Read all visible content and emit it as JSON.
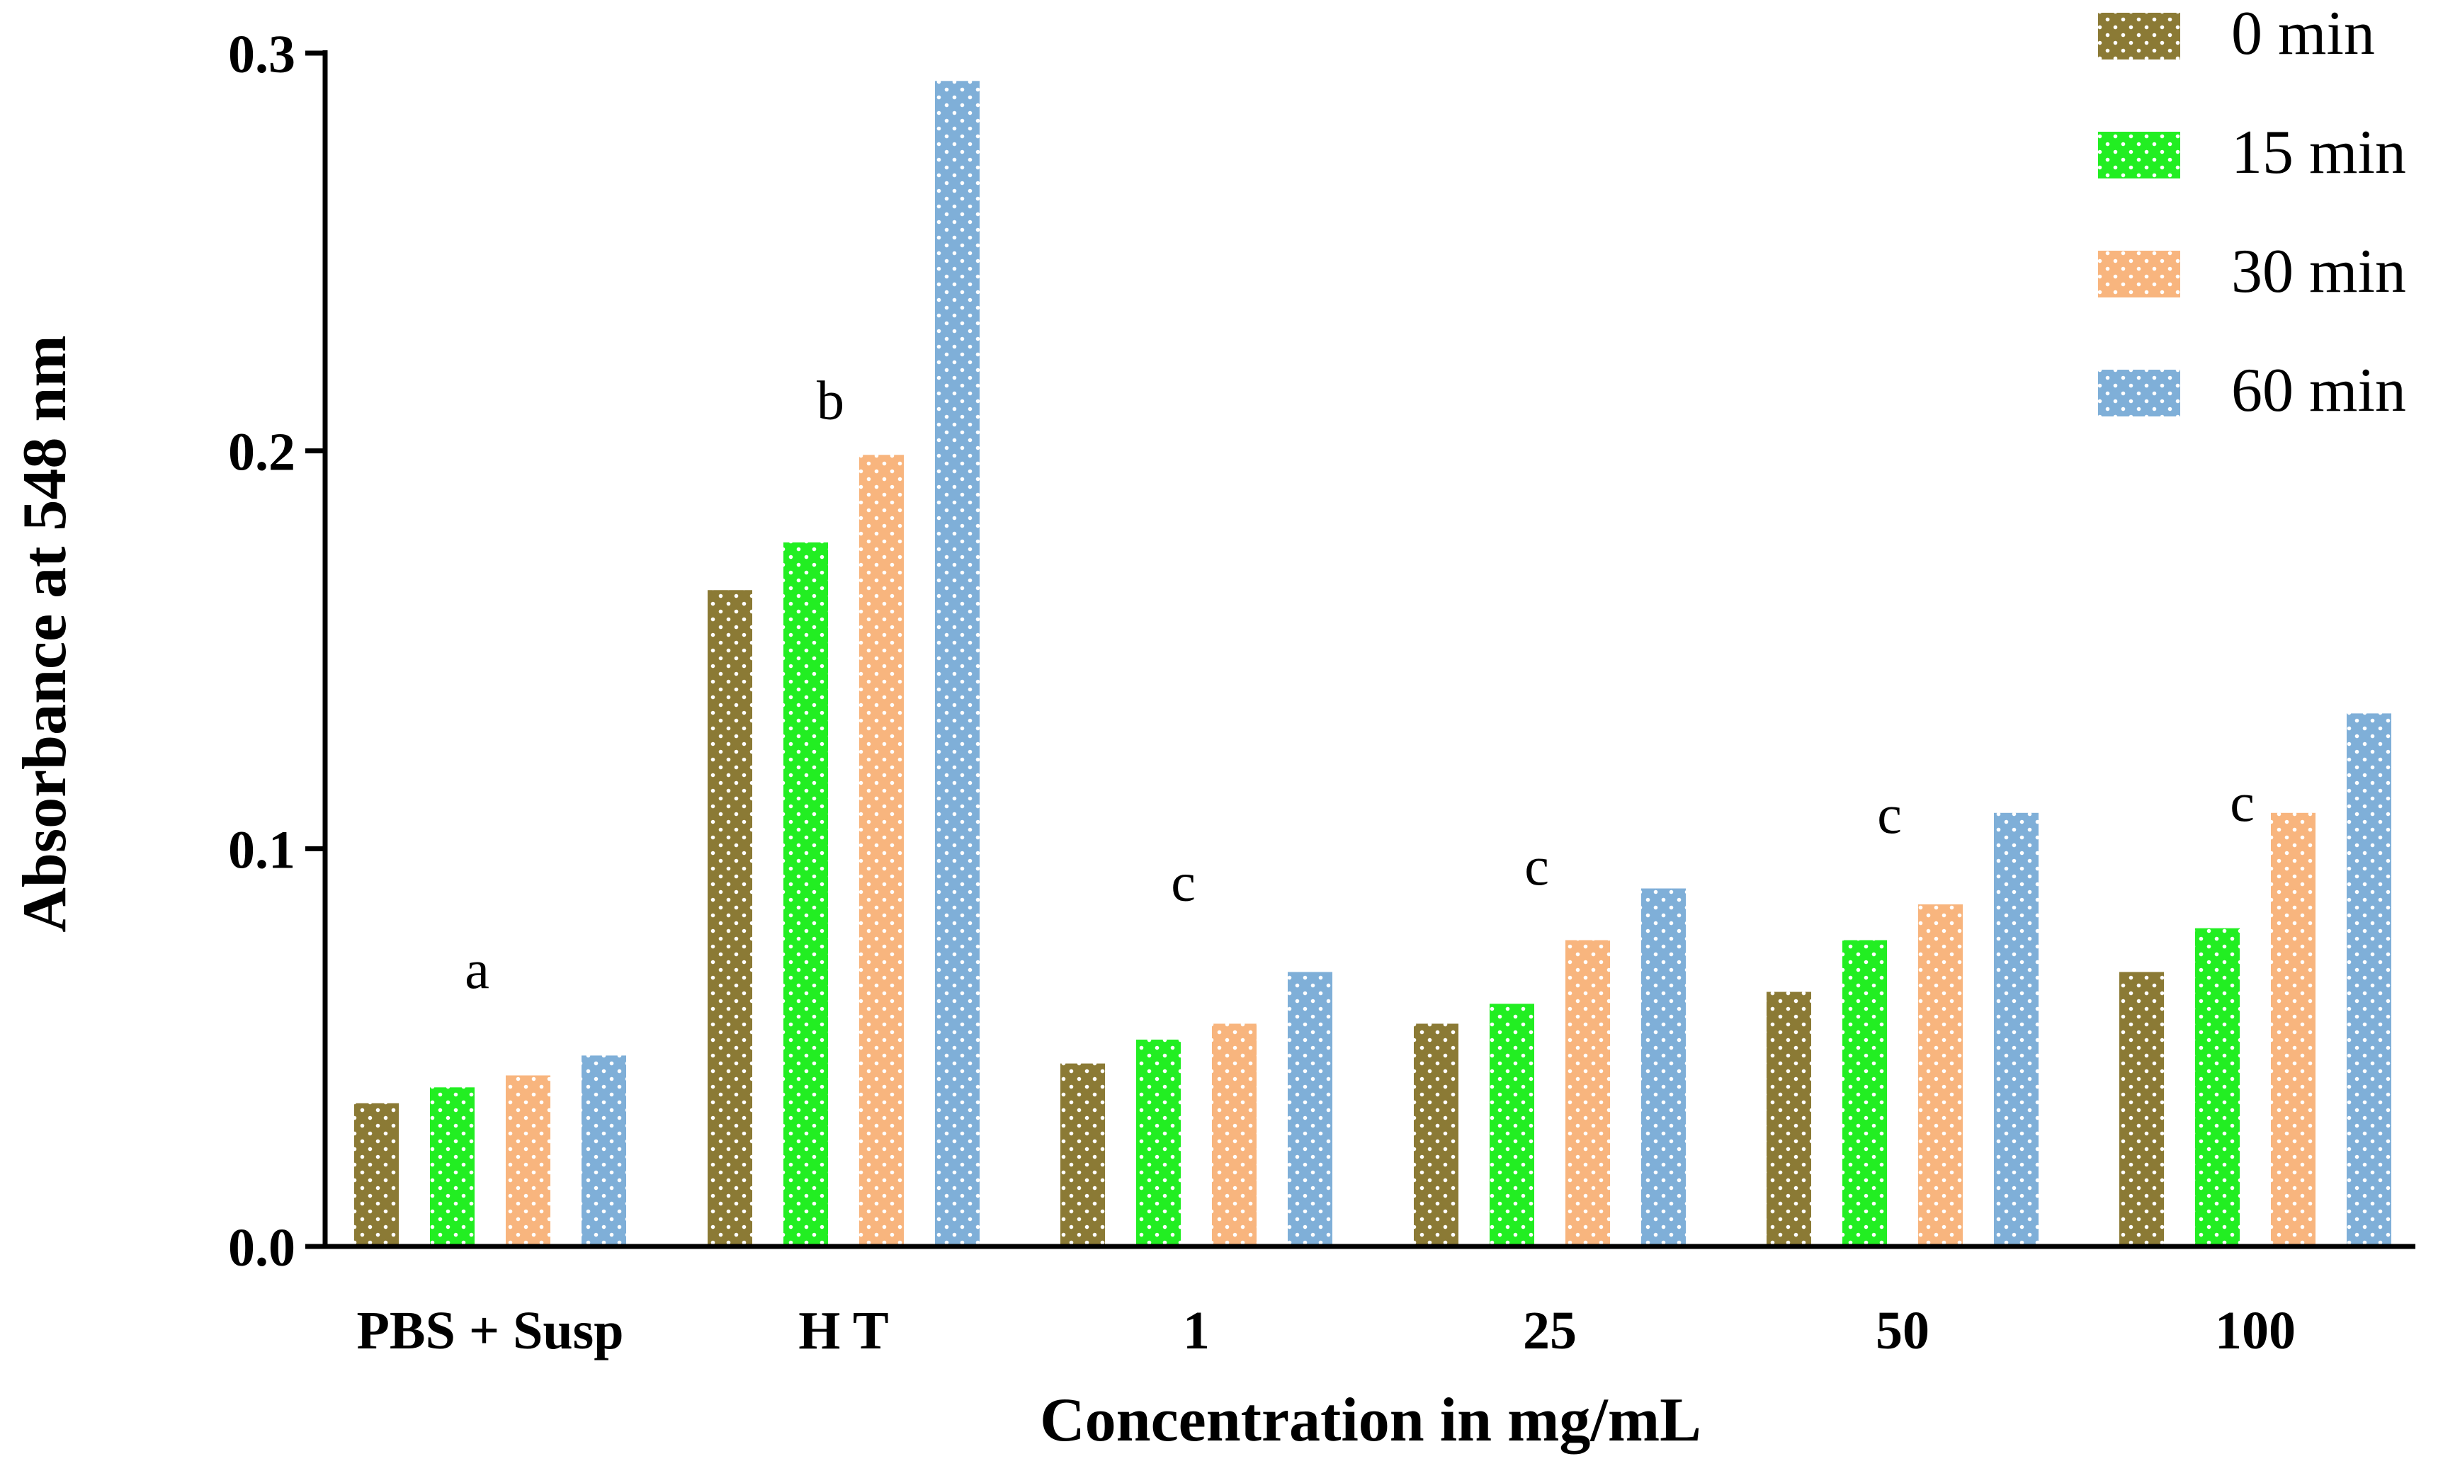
{
  "chart_data": {
    "type": "bar",
    "title": "",
    "xlabel": "Concentration in mg/mL",
    "ylabel": "Absorbance at 548 nm",
    "ylim": [
      0,
      0.3
    ],
    "yticks": [
      0.0,
      0.1,
      0.2,
      0.3
    ],
    "ytick_labels": [
      "0.0",
      "0.1",
      "0.2",
      "0.3"
    ],
    "grid": false,
    "legend_position": "top-right",
    "categories": [
      "PBS + Susp",
      "H T",
      "1",
      "25",
      "50",
      "100"
    ],
    "series": [
      {
        "name": "0 min",
        "color": "#8B7A35",
        "values": [
          0.036,
          0.165,
          0.046,
          0.056,
          0.064,
          0.069
        ]
      },
      {
        "name": "15 min",
        "color": "#22EE22",
        "values": [
          0.04,
          0.177,
          0.052,
          0.061,
          0.077,
          0.08
        ]
      },
      {
        "name": "30 min",
        "color": "#F8B57E",
        "values": [
          0.043,
          0.199,
          0.056,
          0.077,
          0.086,
          0.109
        ]
      },
      {
        "name": "60 min",
        "color": "#7FAFD8",
        "values": [
          0.048,
          0.293,
          0.069,
          0.09,
          0.109,
          0.134
        ]
      }
    ],
    "annotations": [
      {
        "category": "PBS + Susp",
        "text": "a",
        "y": 0.065
      },
      {
        "category": "H T",
        "text": "b",
        "y": 0.208
      },
      {
        "category": "1",
        "text": "c",
        "y": 0.087
      },
      {
        "category": "25",
        "text": "c",
        "y": 0.091
      },
      {
        "category": "50",
        "text": "c",
        "y": 0.104
      },
      {
        "category": "100",
        "text": "c",
        "y": 0.107
      }
    ]
  }
}
